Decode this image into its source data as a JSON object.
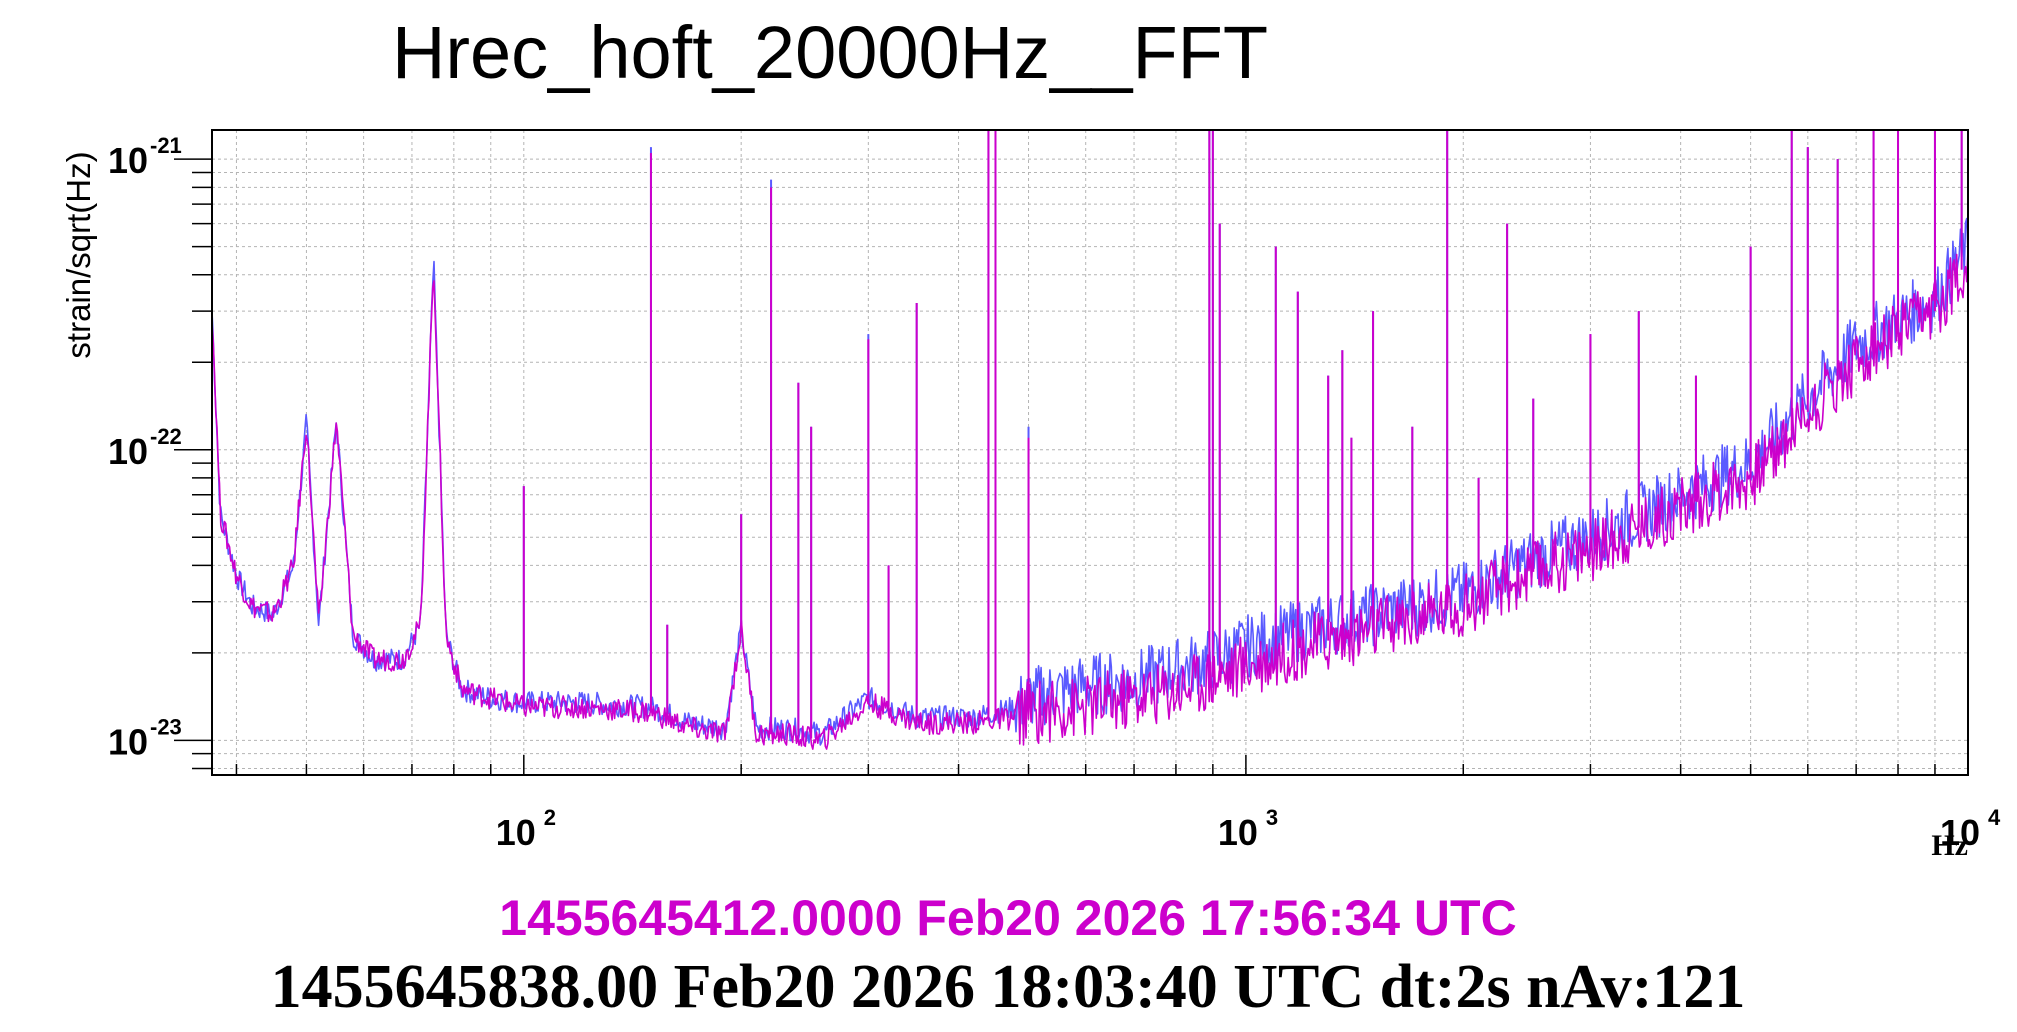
{
  "chart_data": {
    "type": "line",
    "title": "Hrec_hoft_20000Hz__FFT",
    "ylabel": "strain/sqrt(Hz)",
    "xunit": "Hz",
    "xscale": "log",
    "yscale": "log",
    "xlim": [
      37,
      10000
    ],
    "ylim": [
      7.6e-24,
      1.26e-21
    ],
    "grid": true,
    "x_ticks": [
      {
        "value": 100,
        "base": "10",
        "exp": "2"
      },
      {
        "value": 1000,
        "base": "10",
        "exp": "3"
      },
      {
        "value": 10000,
        "base": "10",
        "exp": "4"
      }
    ],
    "y_ticks": [
      {
        "value": 1e-21,
        "base": "10",
        "exp": "-21"
      },
      {
        "value": 1e-22,
        "base": "10",
        "exp": "-22"
      },
      {
        "value": 1e-23,
        "base": "10",
        "exp": "-23"
      }
    ],
    "series": [
      {
        "color": "#5a5aff",
        "baseline": [
          [
            37,
            3e-22
          ],
          [
            38,
            6e-23
          ],
          [
            40,
            3.7e-23
          ],
          [
            42,
            2.9e-23
          ],
          [
            45,
            2.7e-23
          ],
          [
            48,
            4e-23
          ],
          [
            50,
            1.25e-22
          ],
          [
            52,
            2.5e-23
          ],
          [
            55,
            1.26e-22
          ],
          [
            58,
            2.3e-23
          ],
          [
            62,
            1.9e-23
          ],
          [
            68,
            1.9e-23
          ],
          [
            72,
            2.5e-23
          ],
          [
            75,
            4.5e-22
          ],
          [
            78,
            2.3e-23
          ],
          [
            82,
            1.5e-23
          ],
          [
            90,
            1.4e-23
          ],
          [
            100,
            1.35e-23
          ],
          [
            120,
            1.35e-23
          ],
          [
            150,
            1.3e-23
          ],
          [
            170,
            1.15e-23
          ],
          [
            190,
            1.1e-23
          ],
          [
            200,
            2.4e-23
          ],
          [
            210,
            1.1e-23
          ],
          [
            230,
            1.1e-23
          ],
          [
            260,
            1.05e-23
          ],
          [
            300,
            1.4e-23
          ],
          [
            350,
            1.2e-23
          ],
          [
            420,
            1.2e-23
          ],
          [
            480,
            1.3e-23
          ],
          [
            500,
            1.4e-23
          ],
          [
            600,
            1.55e-23
          ],
          [
            700,
            1.6e-23
          ],
          [
            800,
            1.75e-23
          ],
          [
            900,
            1.9e-23
          ],
          [
            1000,
            2.1e-23
          ],
          [
            1200,
            2.4e-23
          ],
          [
            1500,
            2.7e-23
          ],
          [
            2000,
            3.2e-23
          ],
          [
            2500,
            4.2e-23
          ],
          [
            3000,
            5e-23
          ],
          [
            4000,
            7e-23
          ],
          [
            5000,
            9e-23
          ],
          [
            6000,
            1.5e-22
          ],
          [
            7000,
            2.3e-22
          ],
          [
            8000,
            2.8e-22
          ],
          [
            9000,
            3.3e-22
          ],
          [
            10000,
            5e-22
          ]
        ],
        "spikes": [
          [
            100,
            7.5e-23
          ],
          [
            150,
            1.1e-21
          ],
          [
            158,
            2.5e-23
          ],
          [
            200,
            6e-23
          ],
          [
            220,
            8.5e-22
          ],
          [
            240,
            1.7e-22
          ],
          [
            250,
            1.2e-22
          ],
          [
            300,
            2.5e-22
          ],
          [
            320,
            4e-23
          ],
          [
            350,
            3.2e-22
          ],
          [
            440,
            1.26e-21
          ],
          [
            450,
            1.26e-21
          ],
          [
            500,
            1.2e-22
          ],
          [
            890,
            1.26e-21
          ],
          [
            900,
            1.26e-21
          ],
          [
            920,
            6e-22
          ],
          [
            1100,
            5e-22
          ],
          [
            1180,
            3.5e-22
          ],
          [
            1300,
            1.8e-22
          ],
          [
            1360,
            2.2e-22
          ],
          [
            1400,
            1.1e-22
          ],
          [
            1500,
            3e-22
          ],
          [
            1700,
            1.2e-22
          ],
          [
            1900,
            1.26e-21
          ],
          [
            2100,
            8e-23
          ],
          [
            2300,
            6e-22
          ],
          [
            2500,
            1.5e-22
          ],
          [
            3000,
            2.5e-22
          ],
          [
            3500,
            3e-22
          ],
          [
            4200,
            1.8e-22
          ],
          [
            5000,
            5e-22
          ],
          [
            5700,
            1.26e-21
          ],
          [
            6000,
            1.1e-21
          ],
          [
            6600,
            1e-21
          ],
          [
            7400,
            1.26e-21
          ],
          [
            8000,
            1.26e-21
          ],
          [
            9000,
            1.26e-21
          ],
          [
            9800,
            1.26e-21
          ]
        ]
      },
      {
        "color": "#cc00cc",
        "baseline": [
          [
            37,
            3e-22
          ],
          [
            38,
            6e-23
          ],
          [
            40,
            3.7e-23
          ],
          [
            42,
            2.9e-23
          ],
          [
            45,
            2.7e-23
          ],
          [
            48,
            4e-23
          ],
          [
            50,
            1.25e-22
          ],
          [
            52,
            2.5e-23
          ],
          [
            55,
            1.26e-22
          ],
          [
            58,
            2.3e-23
          ],
          [
            62,
            1.9e-23
          ],
          [
            68,
            1.9e-23
          ],
          [
            72,
            2.5e-23
          ],
          [
            75,
            4.5e-22
          ],
          [
            78,
            2.3e-23
          ],
          [
            82,
            1.5e-23
          ],
          [
            90,
            1.4e-23
          ],
          [
            100,
            1.3e-23
          ],
          [
            120,
            1.3e-23
          ],
          [
            150,
            1.25e-23
          ],
          [
            170,
            1.1e-23
          ],
          [
            190,
            1.05e-23
          ],
          [
            200,
            2.4e-23
          ],
          [
            210,
            1.05e-23
          ],
          [
            230,
            1.05e-23
          ],
          [
            260,
            1e-23
          ],
          [
            300,
            1.35e-23
          ],
          [
            350,
            1.15e-23
          ],
          [
            420,
            1.15e-23
          ],
          [
            480,
            1.2e-23
          ],
          [
            500,
            1.25e-23
          ],
          [
            600,
            1.3e-23
          ],
          [
            700,
            1.4e-23
          ],
          [
            800,
            1.5e-23
          ],
          [
            900,
            1.65e-23
          ],
          [
            1000,
            1.8e-23
          ],
          [
            1200,
            2.1e-23
          ],
          [
            1500,
            2.4e-23
          ],
          [
            2000,
            2.9e-23
          ],
          [
            2500,
            3.8e-23
          ],
          [
            3000,
            4.5e-23
          ],
          [
            4000,
            6.3e-23
          ],
          [
            5000,
            8e-23
          ],
          [
            6000,
            1.35e-22
          ],
          [
            7000,
            2e-22
          ],
          [
            8000,
            2.5e-22
          ],
          [
            9000,
            3e-22
          ],
          [
            10000,
            4.5e-22
          ]
        ],
        "spikes": [
          [
            100,
            7.5e-23
          ],
          [
            150,
            1.05e-21
          ],
          [
            158,
            2.5e-23
          ],
          [
            200,
            6e-23
          ],
          [
            220,
            8e-22
          ],
          [
            240,
            1.7e-22
          ],
          [
            250,
            1.2e-22
          ],
          [
            300,
            2.4e-22
          ],
          [
            320,
            4e-23
          ],
          [
            350,
            3.2e-22
          ],
          [
            440,
            1.26e-21
          ],
          [
            450,
            1.26e-21
          ],
          [
            500,
            1.1e-22
          ],
          [
            890,
            1.26e-21
          ],
          [
            900,
            1.26e-21
          ],
          [
            920,
            6e-22
          ],
          [
            1100,
            5e-22
          ],
          [
            1180,
            3.5e-22
          ],
          [
            1300,
            1.8e-22
          ],
          [
            1360,
            2.2e-22
          ],
          [
            1400,
            1.1e-22
          ],
          [
            1500,
            3e-22
          ],
          [
            1700,
            1.2e-22
          ],
          [
            1900,
            1.26e-21
          ],
          [
            2100,
            8e-23
          ],
          [
            2300,
            6e-22
          ],
          [
            2500,
            1.5e-22
          ],
          [
            3000,
            2.5e-22
          ],
          [
            3500,
            3e-22
          ],
          [
            4200,
            1.8e-22
          ],
          [
            5000,
            5e-22
          ],
          [
            5700,
            1.26e-21
          ],
          [
            6000,
            1.1e-21
          ],
          [
            6600,
            1e-21
          ],
          [
            7400,
            1.26e-21
          ],
          [
            8000,
            1.26e-21
          ],
          [
            9000,
            1.26e-21
          ],
          [
            9800,
            1.26e-21
          ]
        ]
      }
    ]
  },
  "footer": {
    "line1": "1455645412.0000 Feb20 2026 17:56:34 UTC",
    "line1_color": "#cc00cc",
    "line2": "1455645838.00 Feb20 2026 18:03:40 UTC dt:2s nAv:121"
  }
}
